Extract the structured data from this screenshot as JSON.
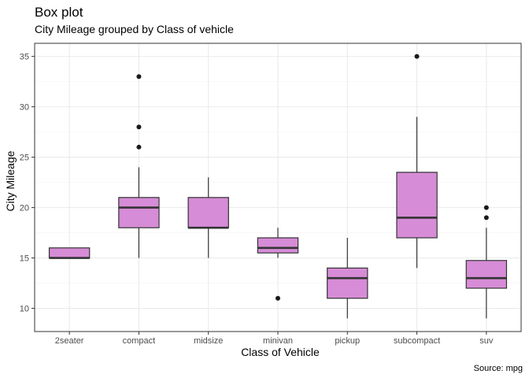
{
  "chart_data": {
    "type": "boxplot",
    "title": "Box plot",
    "subtitle": "City Mileage grouped by Class of vehicle",
    "caption": "Source: mpg",
    "xlabel": "Class of Vehicle",
    "ylabel": "City Mileage",
    "ylim": [
      7.7,
      36.3
    ],
    "yticks": [
      10,
      15,
      20,
      25,
      30,
      35
    ],
    "grid": true,
    "box_fill": "#d68cd6",
    "box_stroke": "#333333",
    "categories": [
      "2seater",
      "compact",
      "midsize",
      "minivan",
      "pickup",
      "subcompact",
      "suv"
    ],
    "boxes": [
      {
        "label": "2seater",
        "min": 15,
        "q1": 15,
        "median": 15,
        "q3": 16,
        "max": 16,
        "outliers": []
      },
      {
        "label": "compact",
        "min": 15,
        "q1": 18,
        "median": 20,
        "q3": 21,
        "max": 24,
        "outliers": [
          26,
          28,
          33
        ]
      },
      {
        "label": "midsize",
        "min": 15,
        "q1": 18,
        "median": 18,
        "q3": 21,
        "max": 23,
        "outliers": []
      },
      {
        "label": "minivan",
        "min": 15,
        "q1": 15.5,
        "median": 16,
        "q3": 17,
        "max": 18,
        "outliers": [
          11
        ]
      },
      {
        "label": "pickup",
        "min": 9,
        "q1": 11,
        "median": 13,
        "q3": 14,
        "max": 17,
        "outliers": []
      },
      {
        "label": "subcompact",
        "min": 14,
        "q1": 17,
        "median": 19,
        "q3": 23.5,
        "max": 29,
        "outliers": [
          35
        ]
      },
      {
        "label": "suv",
        "min": 9,
        "q1": 12,
        "median": 13,
        "q3": 14.75,
        "max": 18,
        "outliers": [
          19,
          20
        ]
      }
    ]
  }
}
